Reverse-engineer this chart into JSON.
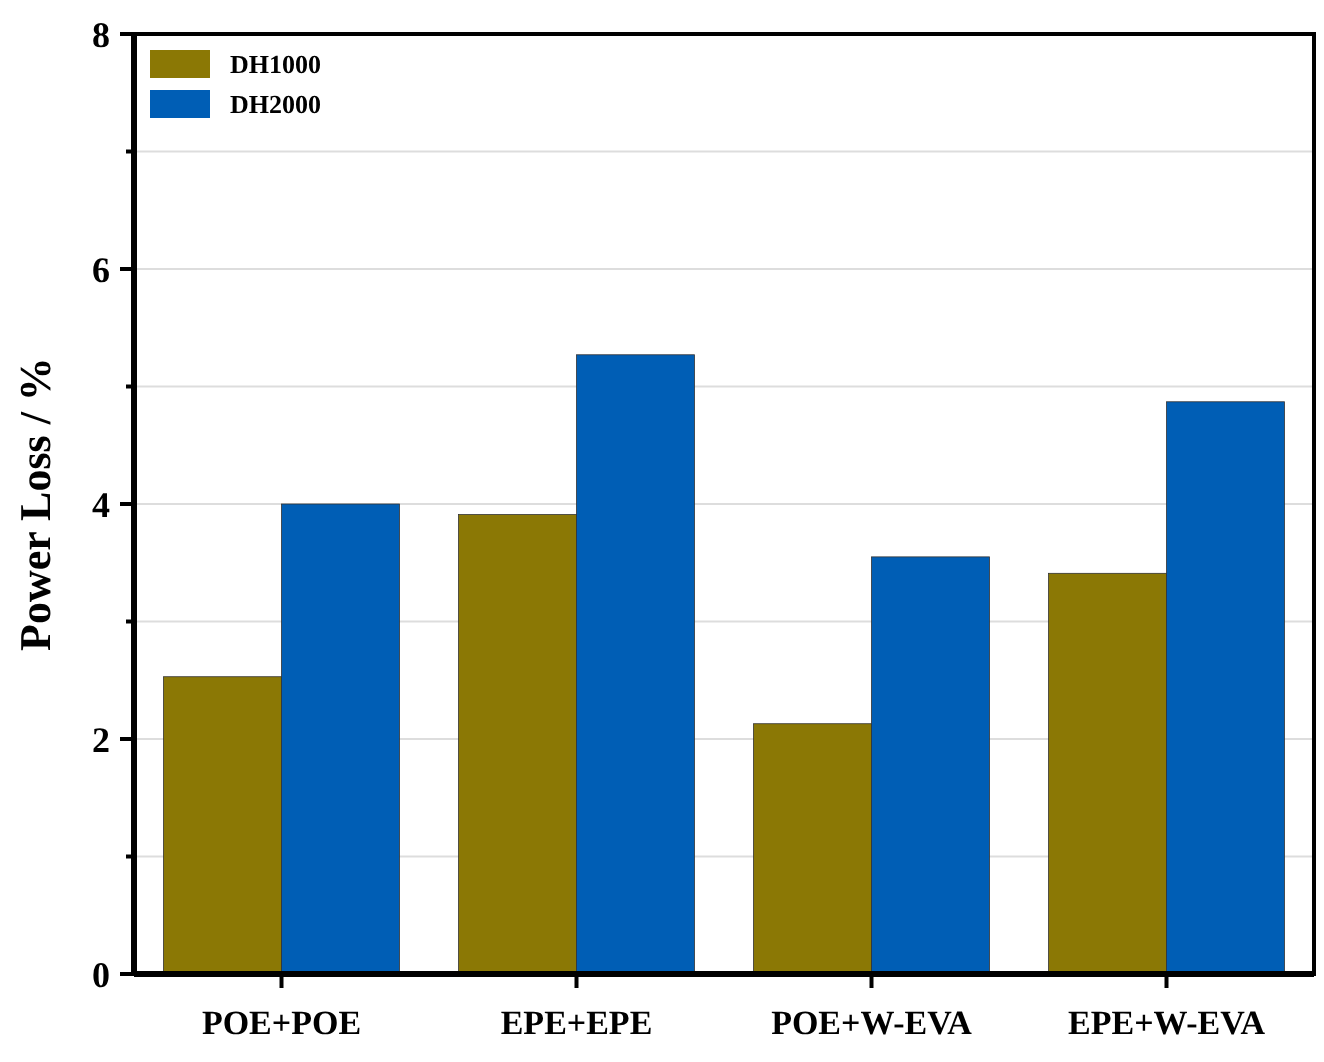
{
  "chart_data": {
    "type": "bar",
    "ylabel": "Power Loss / %",
    "categories": [
      "POE+POE",
      "EPE+EPE",
      "POE+W-EVA",
      "EPE+W-EVA"
    ],
    "series": [
      {
        "name": "DH1000",
        "color": "#8b7805",
        "values": [
          2.53,
          3.91,
          2.13,
          3.41
        ]
      },
      {
        "name": "DH2000",
        "color": "#005eb5",
        "values": [
          4.0,
          5.27,
          3.55,
          4.87
        ]
      }
    ],
    "ylim": [
      0,
      8
    ],
    "yticks": [
      0,
      {
        "value": 1,
        "label": null
      },
      2,
      {
        "value": 3,
        "label": null
      },
      4,
      {
        "value": 5,
        "label": null
      },
      6,
      {
        "value": 7,
        "label": null
      },
      8
    ],
    "grid": "y",
    "legend": "top left"
  }
}
